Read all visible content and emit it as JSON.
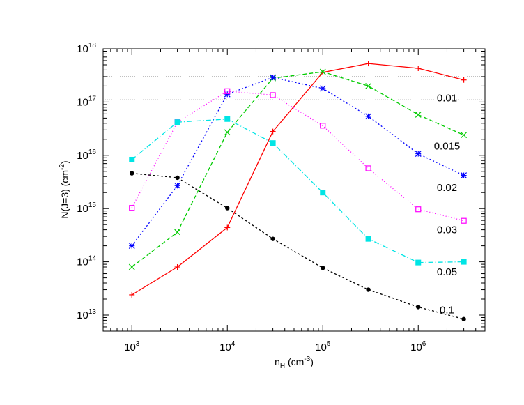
{
  "chart_data": {
    "type": "line",
    "title": "",
    "xlabel": {
      "base": "n",
      "sub": "H",
      "unit_pre": " (cm",
      "unit_sup": "-3",
      "unit_post": ")"
    },
    "ylabel": {
      "text": "N(J=3) (cm",
      "sup": "-2",
      "post": ")"
    },
    "x_scale": "log",
    "y_scale": "log",
    "xlim": [
      500,
      5000000
    ],
    "ylim": [
      5000000000000.0,
      1e+18
    ],
    "x_ticks": [
      {
        "base": "10",
        "exp": "3",
        "value": 1000
      },
      {
        "base": "10",
        "exp": "4",
        "value": 10000
      },
      {
        "base": "10",
        "exp": "5",
        "value": 100000
      },
      {
        "base": "10",
        "exp": "6",
        "value": 1000000
      }
    ],
    "y_ticks": [
      {
        "base": "10",
        "exp": "13",
        "value": 10000000000000.0
      },
      {
        "base": "10",
        "exp": "14",
        "value": 100000000000000.0
      },
      {
        "base": "10",
        "exp": "15",
        "value": 1000000000000000.0
      },
      {
        "base": "10",
        "exp": "16",
        "value": 1e+16
      },
      {
        "base": "10",
        "exp": "17",
        "value": 1e+17
      },
      {
        "base": "10",
        "exp": "18",
        "value": 1e+18
      }
    ],
    "reference_lines": [
      {
        "y": 3e+17,
        "color": "#808080",
        "dash": "1,2"
      },
      {
        "y": 1.1e+17,
        "color": "#808080",
        "dash": "1,2"
      }
    ],
    "grid": false,
    "series": [
      {
        "label": "0.01",
        "color": "#ff0000",
        "marker": "plus",
        "dash": "",
        "label_pos": {
          "x": 2000000,
          "y": 1.2e+17
        },
        "points": [
          [
            1000,
            24000000000000.0
          ],
          [
            3000,
            80000000000000.0
          ],
          [
            10000,
            440000000000000.0
          ],
          [
            30000,
            2.8e+16
          ],
          [
            100000,
            3.6e+17
          ],
          [
            300000,
            5.3e+17
          ],
          [
            1000000,
            4.3e+17
          ],
          [
            3000000,
            2.6e+17
          ]
        ]
      },
      {
        "label": "0.015",
        "color": "#00cc00",
        "marker": "cross",
        "dash": "6,3",
        "label_pos": {
          "x": 2000000,
          "y": 1.5e+16
        },
        "points": [
          [
            1000,
            80000000000000.0
          ],
          [
            3000,
            360000000000000.0
          ],
          [
            10000,
            2.7e+16
          ],
          [
            30000,
            2.8e+17
          ],
          [
            100000,
            3.7e+17
          ],
          [
            300000,
            2e+17
          ],
          [
            1000000,
            5.8e+16
          ],
          [
            3000000,
            2.4e+16
          ]
        ]
      },
      {
        "label": "0.02",
        "color": "#0000ff",
        "marker": "star",
        "dash": "2,3",
        "label_pos": {
          "x": 2000000,
          "y": 2500000000000000.0
        },
        "points": [
          [
            1000,
            200000000000000.0
          ],
          [
            3000,
            2700000000000000.0
          ],
          [
            10000,
            1.4e+17
          ],
          [
            30000,
            2.9e+17
          ],
          [
            100000,
            1.8e+17
          ],
          [
            300000,
            5.4e+16
          ],
          [
            1000000,
            1.07e+16
          ],
          [
            3000000,
            4200000000000000.0
          ]
        ]
      },
      {
        "label": "0.03",
        "color": "#ff00ff",
        "marker": "box",
        "dash": "1,3",
        "label_pos": {
          "x": 2000000,
          "y": 400000000000000.0
        },
        "points": [
          [
            1000,
            1030000000000000.0
          ],
          [
            3000,
            4.2e+16
          ],
          [
            10000,
            1.6e+17
          ],
          [
            30000,
            1.35e+17
          ],
          [
            100000,
            3.6e+16
          ],
          [
            300000,
            5700000000000000.0
          ],
          [
            1000000,
            970000000000000.0
          ],
          [
            3000000,
            590000000000000.0
          ]
        ]
      },
      {
        "label": "0.05",
        "color": "#00e5e5",
        "marker": "filledbox",
        "dash": "7,3,1,3",
        "label_pos": {
          "x": 2000000,
          "y": 65000000000000.0
        },
        "points": [
          [
            1000,
            8300000000000000.0
          ],
          [
            3000,
            4.2e+16
          ],
          [
            10000,
            4.8e+16
          ],
          [
            30000,
            1.7e+16
          ],
          [
            100000,
            2000000000000000.0
          ],
          [
            300000,
            270000000000000.0
          ],
          [
            1000000,
            97000000000000.0
          ],
          [
            3000000,
            100000000000000.0
          ]
        ]
      },
      {
        "label": "0.1",
        "color": "#000000",
        "marker": "dot",
        "dash": "3,3",
        "label_pos": {
          "x": 2000000,
          "y": 12500000000000.0
        },
        "points": [
          [
            1000,
            4600000000000000.0
          ],
          [
            3000,
            3800000000000000.0
          ],
          [
            10000,
            1020000000000000.0
          ],
          [
            30000,
            270000000000000.0
          ],
          [
            100000,
            77000000000000.0
          ],
          [
            300000,
            30000000000000.0
          ],
          [
            1000000,
            14200000000000.0
          ],
          [
            3000000,
            8400000000000.0
          ]
        ]
      }
    ]
  }
}
